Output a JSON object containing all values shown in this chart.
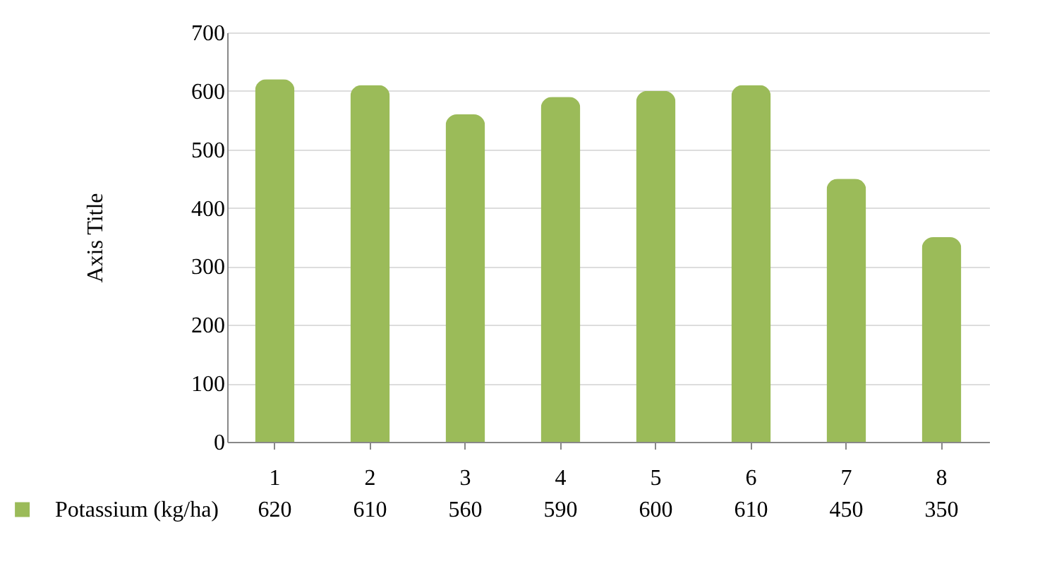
{
  "chart_data": {
    "type": "bar",
    "ylabel": "Axis Title",
    "categories": [
      "1",
      "2",
      "3",
      "4",
      "5",
      "6",
      "7",
      "8"
    ],
    "series": [
      {
        "name": "Potassium (kg/ha)",
        "color": "#9bbb59",
        "values": [
          620,
          610,
          560,
          590,
          600,
          610,
          450,
          350
        ]
      }
    ],
    "ylim": [
      0,
      700
    ],
    "yticks": [
      0,
      100,
      200,
      300,
      400,
      500,
      600,
      700
    ],
    "grid": "y",
    "data_labels": true,
    "legend": "bottom"
  }
}
